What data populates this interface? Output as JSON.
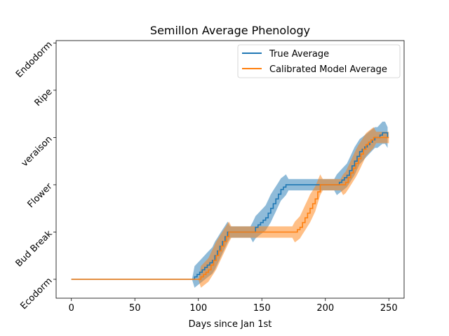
{
  "chart_data": {
    "type": "line",
    "title": "Semillon Average Phenology",
    "xlabel": "Days since Jan 1st",
    "ylabel": "",
    "xlim": [
      -12,
      262
    ],
    "ylim": [
      -0.4,
      5.05
    ],
    "xticks": [
      0,
      50,
      100,
      150,
      200,
      250
    ],
    "yticks": [
      {
        "value": 0,
        "label": "Ecodorm"
      },
      {
        "value": 1,
        "label": "Bud Break"
      },
      {
        "value": 2,
        "label": "Flower"
      },
      {
        "value": 3,
        "label": "veraison"
      },
      {
        "value": 4,
        "label": "Ripe"
      },
      {
        "value": 5,
        "label": "Endodorm"
      }
    ],
    "legend_position": "top-right",
    "grid": false,
    "series": [
      {
        "name": "True Average",
        "color": "#1f77b4",
        "x": [
          0,
          95,
          97,
          99,
          101,
          103,
          105,
          107,
          109,
          111,
          113,
          115,
          117,
          119,
          121,
          123,
          125,
          127,
          129,
          131,
          133,
          135,
          137,
          139,
          141,
          143,
          145,
          147,
          149,
          151,
          153,
          155,
          157,
          159,
          161,
          163,
          165,
          167,
          169,
          171,
          173,
          175,
          177,
          179,
          181,
          183,
          185,
          187,
          189,
          191,
          193,
          195,
          197,
          199,
          201,
          203,
          205,
          207,
          209,
          211,
          213,
          215,
          217,
          219,
          221,
          223,
          225,
          227,
          229,
          231,
          233,
          235,
          237,
          239,
          241,
          243,
          245,
          247,
          249
        ],
        "y": [
          0,
          0,
          0.05,
          0.1,
          0.15,
          0.2,
          0.25,
          0.3,
          0.35,
          0.4,
          0.5,
          0.6,
          0.7,
          0.8,
          0.9,
          1,
          1,
          1,
          1,
          1,
          1,
          1,
          1,
          1,
          1,
          1,
          1.1,
          1.15,
          1.2,
          1.25,
          1.3,
          1.4,
          1.5,
          1.6,
          1.7,
          1.8,
          1.9,
          1.95,
          2,
          2,
          2,
          2,
          2,
          2,
          2,
          2,
          2,
          2,
          2,
          2,
          2,
          2,
          2,
          2,
          2,
          2,
          2,
          2,
          2,
          2.05,
          2.1,
          2.15,
          2.2,
          2.3,
          2.4,
          2.5,
          2.6,
          2.7,
          2.75,
          2.8,
          2.85,
          2.9,
          2.95,
          3,
          3,
          3.05,
          3.1,
          3.1,
          3
        ]
      },
      {
        "name": "Calibrated Model Average",
        "color": "#ff7f0e",
        "x": [
          0,
          100,
          102,
          104,
          106,
          108,
          110,
          112,
          114,
          116,
          118,
          120,
          122,
          124,
          126,
          128,
          130,
          132,
          134,
          136,
          138,
          140,
          142,
          144,
          146,
          148,
          150,
          152,
          154,
          156,
          158,
          160,
          162,
          164,
          166,
          168,
          170,
          172,
          174,
          176,
          178,
          180,
          182,
          184,
          186,
          188,
          190,
          192,
          194,
          196,
          198,
          200,
          202,
          204,
          206,
          208,
          210,
          212,
          214,
          216,
          218,
          220,
          222,
          224,
          226,
          228,
          230,
          232,
          234,
          236,
          238,
          240,
          242,
          244,
          246,
          248,
          250
        ],
        "y": [
          0,
          0,
          0.05,
          0.1,
          0.15,
          0.2,
          0.3,
          0.4,
          0.5,
          0.6,
          0.7,
          0.8,
          0.9,
          1,
          1,
          1,
          1,
          1,
          1,
          1,
          1,
          1,
          1,
          1,
          1,
          1,
          1,
          1,
          1,
          1,
          1,
          1,
          1,
          1,
          1,
          1,
          1,
          1,
          1,
          1,
          1.05,
          1.1,
          1.2,
          1.3,
          1.4,
          1.5,
          1.6,
          1.7,
          1.85,
          2,
          2,
          2,
          2,
          2,
          2,
          2,
          2,
          2,
          2,
          2.05,
          2.15,
          2.25,
          2.35,
          2.45,
          2.55,
          2.65,
          2.75,
          2.85,
          2.9,
          2.95,
          3,
          3,
          3,
          3,
          3,
          3,
          3
        ]
      }
    ]
  }
}
